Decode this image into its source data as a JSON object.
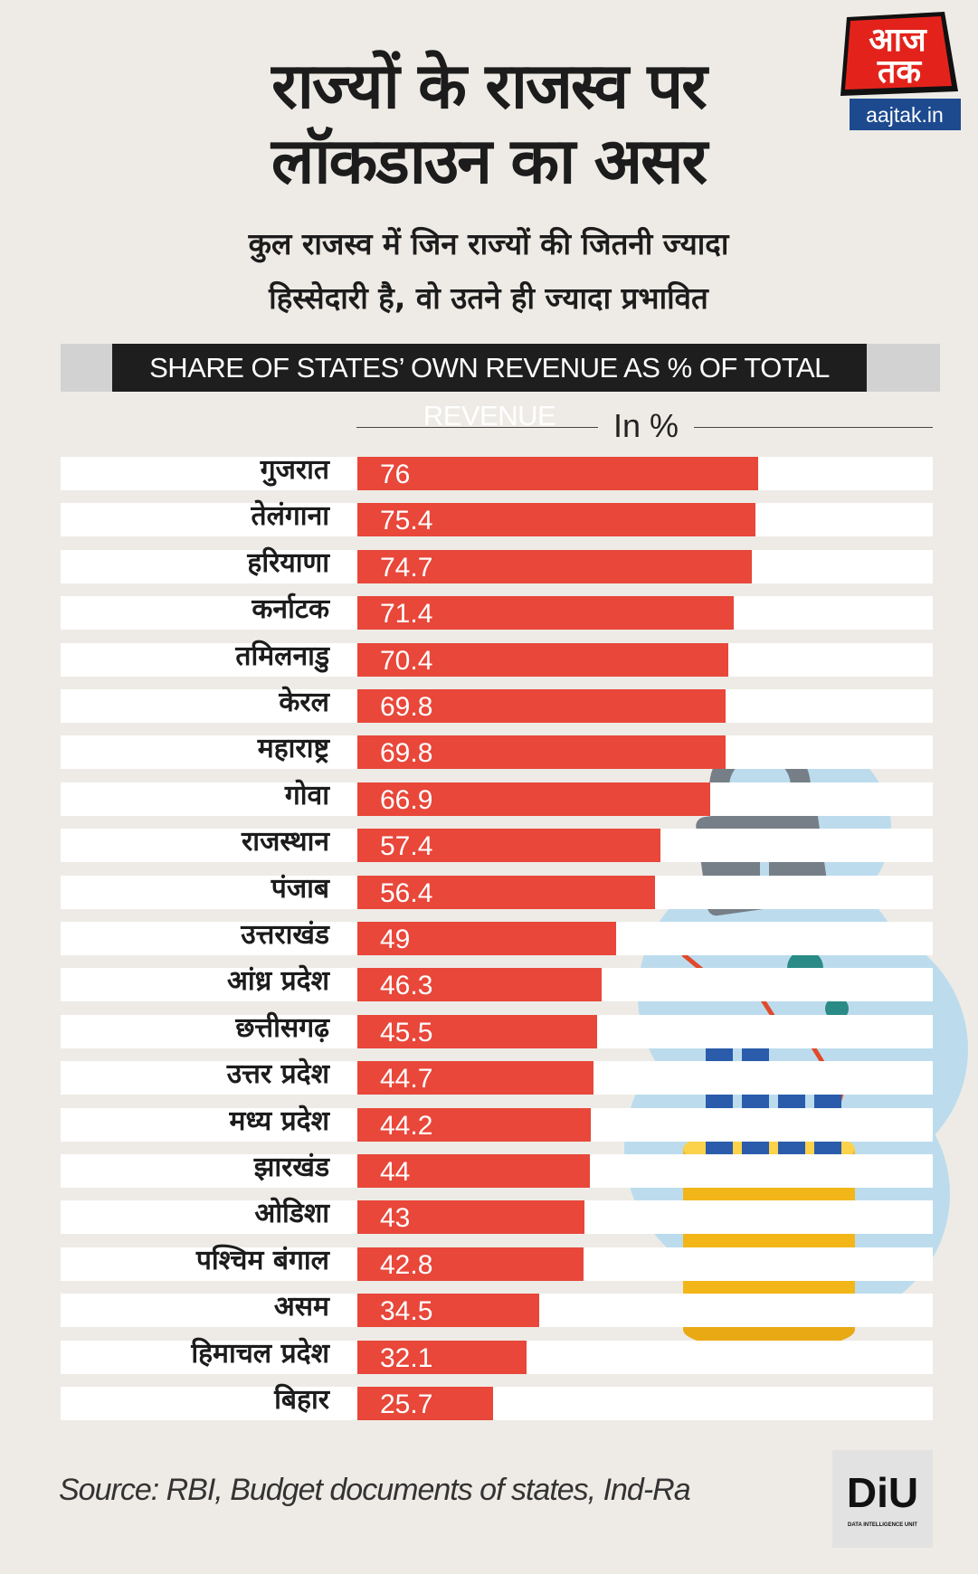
{
  "header": {
    "title_line1": "राज्यों के राजस्व पर",
    "title_line2": "लॉकडाउन का असर",
    "subtitle_line1": "कुल राजस्व में जिन राज्यों की जितनी ज्यादा",
    "subtitle_line2": "हिस्सेदारी है, वो उतने ही ज्यादा प्रभावित",
    "logo_text_top": "आज",
    "logo_text_bottom": "तक",
    "logo_domain": "aajtak.in"
  },
  "chart_data": {
    "type": "bar",
    "orientation": "horizontal",
    "title": "SHARE OF STATES’ OWN REVENUE AS % OF TOTAL REVENUE",
    "unit_label": "In %",
    "categories": [
      "गुजरात",
      "तेलंगाना",
      "हरियाणा",
      "कर्नाटक",
      "तमिलनाडु",
      "केरल",
      "महाराष्ट्र",
      "गोवा",
      "राजस्थान",
      "पंजाब",
      "उत्तराखंड",
      "आंध्र प्रदेश",
      "छत्तीसगढ़",
      "उत्तर प्रदेश",
      "मध्य प्रदेश",
      "झारखंड",
      "ओडिशा",
      "पश्चिम बंगाल",
      "असम",
      "हिमाचल प्रदेश",
      "बिहार"
    ],
    "values": [
      76,
      75.4,
      74.7,
      71.4,
      70.4,
      69.8,
      69.8,
      66.9,
      57.4,
      56.4,
      49,
      46.3,
      45.5,
      44.7,
      44.2,
      44,
      43,
      42.8,
      34.5,
      32.1,
      25.7
    ],
    "value_labels": [
      "76",
      "75.4",
      "74.7",
      "71.4",
      "70.4",
      "69.8",
      "69.8",
      "66.9",
      "57.4",
      "56.4",
      "49",
      "46.3",
      "45.5",
      "44.7",
      "44.2",
      "44",
      "43",
      "42.8",
      "34.5",
      "32.1",
      "25.7"
    ],
    "bar_color": "#e8473a",
    "grid": false
  },
  "footer": {
    "source": "Source: RBI, Budget documents of states, Ind-Ra",
    "diu_logo": "DiU",
    "diu_caption": "DATA INTELLIGENCE UNIT"
  }
}
